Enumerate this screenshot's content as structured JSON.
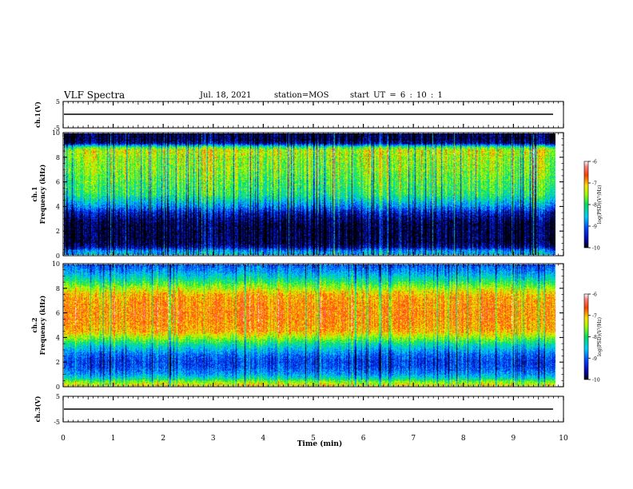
{
  "header": {
    "title": "VLF Spectra",
    "date": "Jul. 18, 2021",
    "station": "station=MOS",
    "start": "start UT = 6 : 10 : 1"
  },
  "chart_data": [
    {
      "type": "line",
      "name": "ch1-waveform",
      "ylabel": "ch.1(V)",
      "ylim": [
        -5,
        5
      ],
      "yticks": [
        "5",
        "-5"
      ],
      "x": [
        0,
        9.85
      ],
      "y": [
        0,
        0
      ],
      "color": "#000000"
    },
    {
      "type": "heatmap",
      "name": "ch1-spectrogram",
      "ylabel": "ch.1 Frequency (kHz)",
      "ylim": [
        0,
        10
      ],
      "yticks": [
        "0",
        "2",
        "4",
        "6",
        "8",
        "10"
      ],
      "xlim": [
        0,
        10
      ],
      "data_end_min": 9.85,
      "colorbar": {
        "label": "log(PSD)(V²/Hz)",
        "ticks": [
          "-6",
          "-7",
          "-8",
          "-9",
          "-10"
        ],
        "range": [
          -10,
          -6
        ]
      },
      "profile_freq_khz": [
        0,
        0.3,
        0.6,
        1,
        1.5,
        2,
        2.5,
        3,
        3.5,
        4,
        4.5,
        5,
        6,
        7,
        8,
        8.6,
        8.9,
        9.2,
        9.5,
        10
      ],
      "profile_log_psd": [
        -8.6,
        -8.8,
        -9.6,
        -9.9,
        -9.9,
        -9.9,
        -9.9,
        -9.7,
        -9.4,
        -8.8,
        -8.4,
        -8.0,
        -7.8,
        -7.6,
        -7.5,
        -7.3,
        -7.9,
        -9.6,
        -9.9,
        -9.9
      ]
    },
    {
      "type": "heatmap",
      "name": "ch2-spectrogram",
      "ylabel": "ch.2 Frequency (kHz)",
      "ylim": [
        0,
        10
      ],
      "yticks": [
        "0",
        "2",
        "4",
        "6",
        "8",
        "10"
      ],
      "xlim": [
        0,
        10
      ],
      "data_end_min": 9.85,
      "colorbar": {
        "label": "log(PSD)(V²/Hz)",
        "ticks": [
          "-6",
          "-7",
          "-8",
          "-9",
          "-10"
        ],
        "range": [
          -10,
          -6
        ]
      },
      "profile_freq_khz": [
        0,
        0.3,
        0.6,
        1,
        1.5,
        2,
        2.5,
        3,
        3.5,
        4,
        4.5,
        5,
        6,
        7,
        7.5,
        8,
        8.5,
        9,
        9.5,
        10
      ],
      "profile_log_psd": [
        -7.2,
        -7.6,
        -8.3,
        -8.8,
        -9.1,
        -9.2,
        -9.0,
        -8.6,
        -8.1,
        -7.5,
        -7.0,
        -6.9,
        -6.8,
        -6.9,
        -7.0,
        -7.4,
        -7.9,
        -8.4,
        -8.8,
        -9.1
      ]
    },
    {
      "type": "line",
      "name": "ch3-waveform",
      "ylabel": "ch.3(V)",
      "ylim": [
        -5,
        5
      ],
      "yticks": [
        "5",
        "-5"
      ],
      "x": [
        0,
        9.85
      ],
      "y": [
        0,
        0
      ],
      "color": "#000000"
    }
  ],
  "xaxis": {
    "label": "Time (min)",
    "range": [
      0,
      10
    ],
    "ticks": [
      "0",
      "1",
      "2",
      "3",
      "4",
      "5",
      "6",
      "7",
      "8",
      "9",
      "10"
    ]
  },
  "colors": {
    "axis": "#000000",
    "background": "#ffffff"
  }
}
